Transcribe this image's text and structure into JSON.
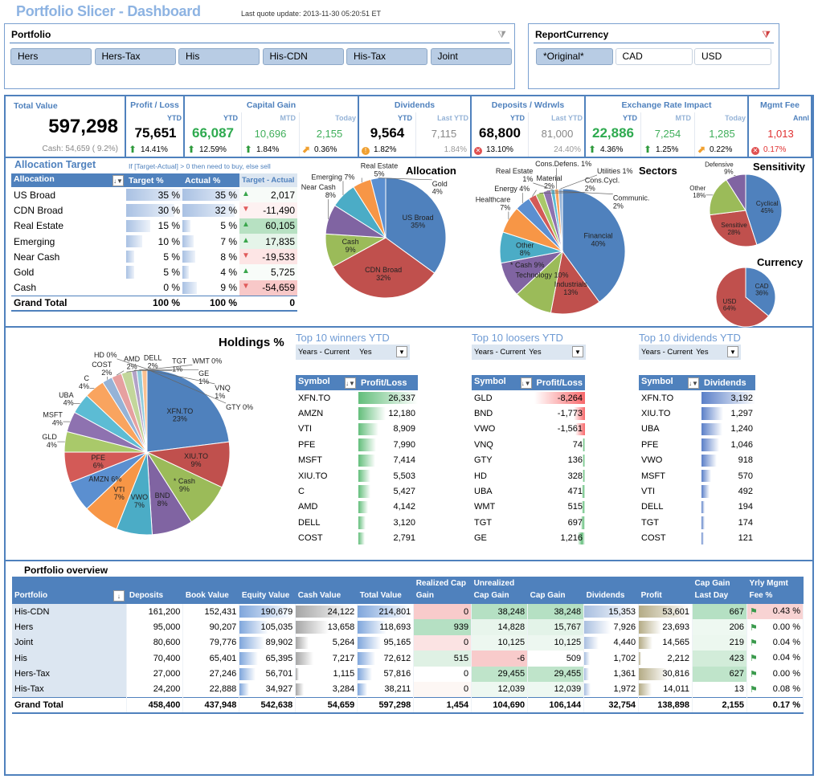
{
  "header": {
    "title": "Portfolio Slicer - Dashboard",
    "last_update": "Last quote update: 2013-11-30 05:20:51 ET"
  },
  "portfolio_slicer": {
    "title": "Portfolio",
    "clear_icon": "filter-clear-icon",
    "items": [
      {
        "label": "Hers",
        "selected": true
      },
      {
        "label": "Hers-Tax",
        "selected": true
      },
      {
        "label": "His",
        "selected": true
      },
      {
        "label": "His-CDN",
        "selected": true
      },
      {
        "label": "His-Tax",
        "selected": true
      },
      {
        "label": "Joint",
        "selected": true
      }
    ]
  },
  "currency_slicer": {
    "title": "ReportCurrency",
    "clear_icon": "filter-clear-icon",
    "items": [
      {
        "label": "*Original*",
        "selected": true
      },
      {
        "label": "CAD",
        "selected": false
      },
      {
        "label": "USD",
        "selected": false
      }
    ]
  },
  "kpis": {
    "total": {
      "label": "Total Value",
      "value": "597,298",
      "sub": "Cash: 54,659 ( 9.2%)"
    },
    "groups": [
      {
        "title": "Profit / Loss",
        "cols": [
          {
            "h": "YTD",
            "v": "75,651",
            "p": "14.41%",
            "icon": "up",
            "style": "main"
          }
        ]
      },
      {
        "title": "Capital Gain",
        "cols": [
          {
            "h": "YTD",
            "v": "66,087",
            "p": "12.59%",
            "icon": "up",
            "style": "green-main"
          },
          {
            "h": "MTD",
            "v": "10,696",
            "p": "1.84%",
            "icon": "up",
            "style": "green"
          },
          {
            "h": "Today",
            "v": "2,155",
            "p": "0.36%",
            "icon": "diag",
            "style": "green"
          }
        ]
      },
      {
        "title": "Dividends",
        "cols": [
          {
            "h": "YTD",
            "v": "9,564",
            "p": "1.82%",
            "icon": "warn",
            "style": "main"
          },
          {
            "h": "Last YTD",
            "v": "7,115",
            "p": "1.84%",
            "icon": "",
            "style": "grey"
          }
        ]
      },
      {
        "title": "Deposits / Wdrwls",
        "cols": [
          {
            "h": "YTD",
            "v": "68,800",
            "p": "13.10%",
            "icon": "x",
            "style": "main"
          },
          {
            "h": "Last YTD",
            "v": "81,000",
            "p": "24.40%",
            "icon": "",
            "style": "grey"
          }
        ]
      },
      {
        "title": "Exchange Rate Impact",
        "cols": [
          {
            "h": "YTD",
            "v": "22,886",
            "p": "4.36%",
            "icon": "up",
            "style": "green-main"
          },
          {
            "h": "MTD",
            "v": "7,254",
            "p": "1.25%",
            "icon": "up",
            "style": "green"
          },
          {
            "h": "Today",
            "v": "1,285",
            "p": "0.22%",
            "icon": "diag",
            "style": "green"
          }
        ]
      },
      {
        "title": "Mgmt Fee",
        "cols": [
          {
            "h": "Annl",
            "v": "1,013",
            "p": "0.17%",
            "icon": "x",
            "style": "red"
          }
        ]
      }
    ]
  },
  "allocation_target": {
    "title": "Allocation Target",
    "note": "If [Target-Actual] > 0 then need to buy, else sell",
    "headers": [
      "Allocation",
      "Target %",
      "Actual %",
      "Target - Actual"
    ],
    "rows": [
      {
        "name": "US Broad",
        "target": 35,
        "actual": 35,
        "diff": "2,017",
        "up": true,
        "bg": "#f7fbf8"
      },
      {
        "name": "CDN Broad",
        "target": 30,
        "actual": 32,
        "diff": "-11,490",
        "up": false,
        "bg": "#fdf1f1"
      },
      {
        "name": "Real Estate",
        "target": 15,
        "actual": 5,
        "diff": "60,105",
        "up": true,
        "bg": "#b7e1c2"
      },
      {
        "name": "Emerging",
        "target": 10,
        "actual": 7,
        "diff": "17,835",
        "up": true,
        "bg": "#e5f4e9"
      },
      {
        "name": "Near Cash",
        "target": 5,
        "actual": 8,
        "diff": "-19,533",
        "up": false,
        "bg": "#fde5e5"
      },
      {
        "name": "Gold",
        "target": 5,
        "actual": 4,
        "diff": "5,725",
        "up": true,
        "bg": "#f8fcf9"
      },
      {
        "name": "Cash",
        "target": 0,
        "actual": 9,
        "diff": "-54,659",
        "up": false,
        "bg": "#f8c8c8"
      }
    ],
    "total": {
      "name": "Grand Total",
      "target": "100 %",
      "actual": "100 %",
      "diff": "0"
    }
  },
  "palette": [
    "#4f81bd",
    "#c0504d",
    "#9bbb59",
    "#8064a2",
    "#4bacc6",
    "#f79646",
    "#5b8fd0",
    "#d35a57",
    "#a9c96a",
    "#8e72b0",
    "#5cbcd4",
    "#f9a45f",
    "#95b3d7",
    "#e6a0a0",
    "#c3d69b",
    "#b2a2c7",
    "#92cddc",
    "#fac090",
    "#dbe5f1",
    "#f2dcdb",
    "#ebf1de"
  ],
  "chart_data": [
    {
      "type": "pie",
      "title": "Allocation",
      "labels": [
        "US Broad",
        "CDN Broad",
        "Cash",
        "Near Cash",
        "Emerging",
        "Real Estate",
        "Gold"
      ],
      "values": [
        35,
        32,
        9,
        8,
        7,
        5,
        4
      ]
    },
    {
      "type": "pie",
      "title": "Sectors",
      "labels": [
        "Financial",
        "Industrials",
        "Technology",
        "* Cash",
        "Other",
        "Healthcare",
        "Energy",
        "Material",
        "Cons.Cycl.",
        "Communic.",
        "Real Estate",
        "Cons.Defens.",
        "Utilities"
      ],
      "values": [
        40,
        13,
        10,
        9,
        8,
        7,
        4,
        2,
        2,
        2,
        1,
        1,
        1
      ]
    },
    {
      "type": "pie",
      "title": "Sensitivity",
      "labels": [
        "Cyclical",
        "Sensitive",
        "Other",
        "Defensive"
      ],
      "values": [
        45,
        28,
        18,
        9
      ]
    },
    {
      "type": "pie",
      "title": "Currency",
      "labels": [
        "CAD",
        "USD"
      ],
      "values": [
        36,
        64
      ]
    },
    {
      "type": "pie",
      "title": "Holdings %",
      "labels": [
        "XFN.TO",
        "XIU.TO",
        "* Cash",
        "BND",
        "VWO",
        "VTI",
        "AMZN",
        "PFE",
        "GLD",
        "MSFT",
        "UBA",
        "C",
        "COST",
        "AMD",
        "DELL",
        "TGT",
        "GE",
        "VNQ",
        "GTY",
        "HD",
        "WMT"
      ],
      "values": [
        23,
        9,
        9,
        8,
        7,
        7,
        6,
        6,
        4,
        4,
        4,
        4,
        2,
        2,
        2,
        1,
        1,
        1,
        0,
        0,
        0
      ]
    }
  ],
  "top_tables": [
    {
      "title": "Top 10 winners YTD",
      "filter_label": "Years - Current",
      "filter_value": "Yes",
      "headers": [
        "Symbol",
        "Profit/Loss"
      ],
      "symbols": [
        "XFN.TO",
        "AMZN",
        "VTI",
        "PFE",
        "MSFT",
        "XIU.TO",
        "C",
        "AMD",
        "DELL",
        "COST"
      ],
      "values": [
        26337,
        12180,
        8909,
        7990,
        7414,
        5503,
        5427,
        4142,
        3120,
        2791
      ],
      "bar_color": "#63be7b"
    },
    {
      "title": "Top 10 loosers YTD",
      "filter_label": "Years - Current",
      "filter_value": "Yes",
      "headers": [
        "Symbol",
        "Profit/Loss"
      ],
      "symbols": [
        "GLD",
        "BND",
        "VWO",
        "VNQ",
        "GTY",
        "HD",
        "UBA",
        "WMT",
        "TGT",
        "GE"
      ],
      "values": [
        -8264,
        -1773,
        -1561,
        74,
        136,
        328,
        471,
        515,
        697,
        1216
      ],
      "bar_color": "#63be7b",
      "neg_color": "#f8696b"
    },
    {
      "title": "Top 10 dividends YTD",
      "filter_label": "Years - Current",
      "filter_value": "Yes",
      "headers": [
        "Symbol",
        "Dividends"
      ],
      "symbols": [
        "XFN.TO",
        "XIU.TO",
        "UBA",
        "PFE",
        "VWO",
        "MSFT",
        "VTI",
        "DELL",
        "TGT",
        "COST"
      ],
      "values": [
        3192,
        1297,
        1240,
        1046,
        918,
        570,
        492,
        194,
        174,
        121
      ],
      "bar_color": "#5a7fc8"
    }
  ],
  "overview": {
    "title": "Portfolio overview",
    "headers": [
      "Portfolio",
      "Deposits",
      "Book Value",
      "Equity Value",
      "Cash Value",
      "Total Value",
      "Realized Cap Gain",
      "Unrealized Cap Gain",
      "Cap Gain",
      "Dividends",
      "Profit",
      "Cap Gain Last Day",
      "Yrly Mgmt Fee %"
    ],
    "rows": [
      {
        "cells": [
          "His-CDN",
          "161,200",
          "152,431",
          "190,679",
          "24,122",
          "214,801",
          "0",
          "38,248",
          "38,248",
          "15,353",
          "53,601",
          "667",
          "0.43 %"
        ],
        "bg": [
          "#f8cbcb",
          "#b5e0c3",
          "#b5e0c3",
          "#b5e0c3",
          "#f8d3d3"
        ]
      },
      {
        "cells": [
          "Hers",
          "95,000",
          "90,207",
          "105,035",
          "13,658",
          "118,693",
          "939",
          "14,828",
          "15,767",
          "7,926",
          "23,693",
          "206",
          "0.00 %"
        ],
        "bg": [
          "#b5e0c3",
          "#e8f5ec",
          "#e3f3e8",
          "#eef8f1",
          "#ffffff"
        ]
      },
      {
        "cells": [
          "Joint",
          "80,600",
          "79,776",
          "89,902",
          "5,264",
          "95,165",
          "0",
          "10,125",
          "10,125",
          "4,440",
          "14,565",
          "219",
          "0.04 %"
        ],
        "bg": [
          "#fbe3e3",
          "#edf7f0",
          "#edf7f0",
          "#ecf7ef",
          "#ffffff"
        ]
      },
      {
        "cells": [
          "His",
          "70,400",
          "65,401",
          "65,395",
          "7,217",
          "72,612",
          "515",
          "-6",
          "509",
          "1,702",
          "2,212",
          "423",
          "0.04 %"
        ],
        "bg": [
          "#dff1e4",
          "#f8cbcb",
          "#ffffff",
          "#d2ecd9",
          "#ffffff"
        ]
      },
      {
        "cells": [
          "Hers-Tax",
          "27,000",
          "27,246",
          "56,701",
          "1,115",
          "57,816",
          "0",
          "29,455",
          "29,455",
          "1,361",
          "30,816",
          "627",
          "0.00 %"
        ],
        "bg": [
          "#ffffff",
          "#bfe4ca",
          "#bfe4ca",
          "#bfe4ca",
          "#ffffff"
        ]
      },
      {
        "cells": [
          "His-Tax",
          "24,200",
          "22,888",
          "34,927",
          "3,284",
          "38,211",
          "0",
          "12,039",
          "12,039",
          "1,972",
          "14,011",
          "13",
          "0.08 %"
        ],
        "bg": [
          "#fdf7f4",
          "#eef8f1",
          "#eef8f1",
          "#ffffff",
          "#ffffff"
        ]
      }
    ],
    "total": [
      "Grand Total",
      "458,400",
      "437,948",
      "542,638",
      "54,659",
      "597,298",
      "1,454",
      "104,690",
      "106,144",
      "32,754",
      "138,898",
      "2,155",
      "0.17 %"
    ]
  }
}
